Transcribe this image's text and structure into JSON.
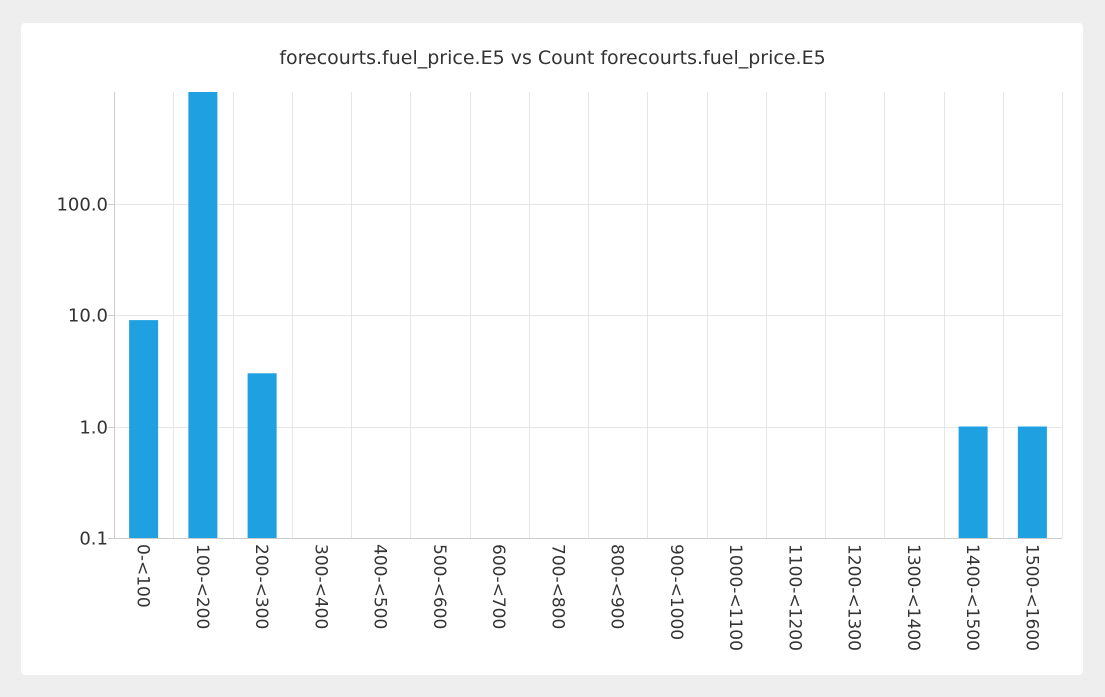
{
  "chart_data": {
    "type": "bar",
    "title": "forecourts.fuel_price.E5 vs Count forecourts.fuel_price.E5",
    "xlabel": "",
    "ylabel": "",
    "y_scale": "log",
    "ylim": [
      0.1,
      1000
    ],
    "y_ticks": [
      0.1,
      1.0,
      10.0,
      100.0
    ],
    "y_tick_labels": [
      "0.1",
      "1.0",
      "10.0",
      "100.0"
    ],
    "grid": true,
    "bar_color": "#1fa0e0",
    "categories": [
      "0-<100",
      "100-<200",
      "200-<300",
      "300-<400",
      "400-<500",
      "500-<600",
      "600-<700",
      "700-<800",
      "800-<900",
      "900-<1000",
      "1000-<1100",
      "1100-<1200",
      "1200-<1300",
      "1300-<1400",
      "1400-<1500",
      "1500-<1600"
    ],
    "values": [
      9,
      1000,
      3,
      0,
      0,
      0,
      0,
      0,
      0,
      0,
      0,
      0,
      0,
      0,
      1,
      1
    ]
  }
}
